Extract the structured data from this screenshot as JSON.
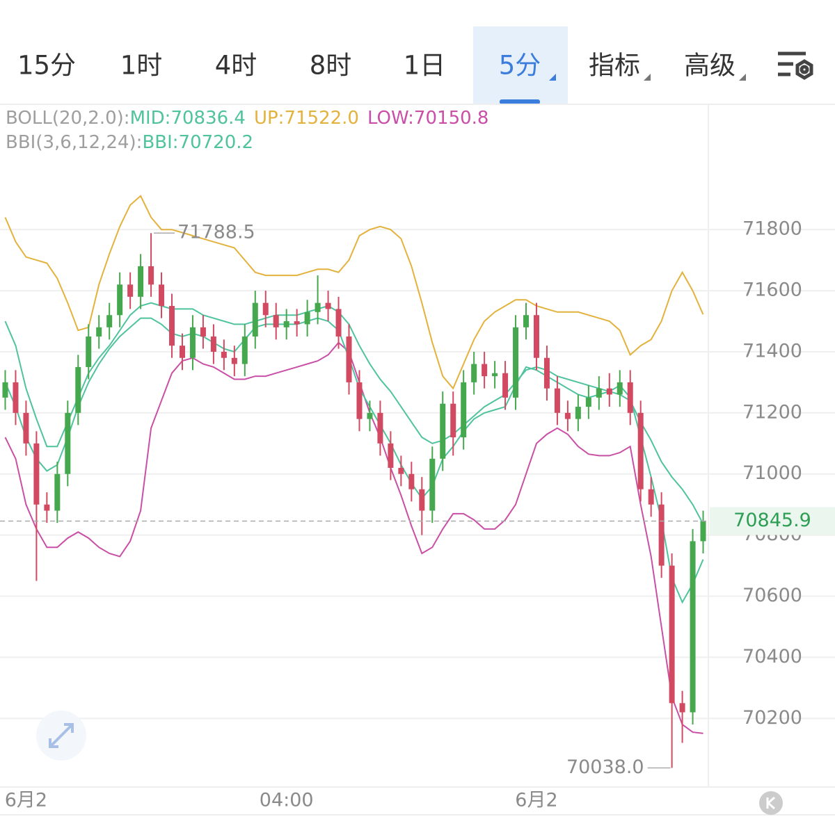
{
  "tabs": [
    "15分",
    "1时",
    "4时",
    "8时",
    "1日",
    "5分",
    "指标",
    "高级"
  ],
  "active_tab": 5,
  "chart_data": {
    "type": "candlestick",
    "legend": [
      {
        "indicator": "BOLL(20,2.0):",
        "color": "#9e9e9e",
        "items": [
          {
            "text": "MID:70836.4",
            "color": "#4fc39d"
          },
          {
            "text": "UP:71522.0",
            "color": "#e3b23c"
          },
          {
            "text": "LOW:70150.8",
            "color": "#c94fa6"
          }
        ]
      },
      {
        "indicator": "BBI(3,6,12,24):",
        "color": "#9e9e9e",
        "items": [
          {
            "text": "BBI:70720.2",
            "color": "#4fc39d"
          }
        ]
      }
    ],
    "up_color": "#45a84f",
    "down_color": "#d24a62",
    "open": [
      71250,
      71300,
      71200,
      71100,
      70900,
      70880,
      71000,
      71200,
      71350,
      71450,
      71480,
      71520,
      71620,
      71580,
      71680,
      71620,
      71550,
      71420,
      71380,
      71480,
      71450,
      71400,
      71380,
      71360,
      71450,
      71560,
      71520,
      71480,
      71500,
      71490,
      71530,
      71560,
      71540,
      71450,
      71300,
      71180,
      71200,
      71100,
      71020,
      71000,
      70950,
      70880,
      71050,
      71230,
      71120,
      71300,
      71360,
      71320,
      71330,
      71250,
      71480,
      71520,
      71380,
      71280,
      71200,
      71180,
      71220,
      71250,
      71280,
      71260,
      71300,
      71200,
      70950,
      70900,
      70700,
      70250,
      70220,
      70780
    ],
    "high": [
      71340,
      71340,
      71240,
      71140,
      70940,
      71040,
      71240,
      71390,
      71490,
      71520,
      71560,
      71660,
      71660,
      71720,
      71788.5,
      71660,
      71590,
      71460,
      71520,
      71520,
      71490,
      71440,
      71420,
      71490,
      71600,
      71600,
      71560,
      71540,
      71540,
      71570,
      71650,
      71600,
      71580,
      71490,
      71340,
      71240,
      71240,
      71140,
      71060,
      71040,
      70990,
      71090,
      71270,
      71270,
      71340,
      71400,
      71400,
      71370,
      71370,
      71520,
      71560,
      71560,
      71420,
      71320,
      71240,
      71260,
      71290,
      71320,
      71330,
      71340,
      71340,
      71240,
      70990,
      70940,
      70740,
      70290,
      70820,
      70880
    ],
    "low": [
      71210,
      71160,
      71060,
      70650,
      70840,
      70840,
      70960,
      71160,
      71310,
      71410,
      71440,
      71480,
      71540,
      71540,
      71580,
      71510,
      71380,
      71340,
      71340,
      71410,
      71360,
      71340,
      71320,
      71320,
      71410,
      71480,
      71440,
      71440,
      71450,
      71450,
      71490,
      71500,
      71410,
      71260,
      71140,
      71140,
      71060,
      70980,
      70960,
      70910,
      70800,
      70840,
      71010,
      71060,
      71080,
      71260,
      71280,
      71280,
      71210,
      71210,
      71440,
      71340,
      71240,
      71160,
      71140,
      71140,
      71180,
      71210,
      71220,
      71220,
      71160,
      70910,
      70860,
      70660,
      70038,
      70120,
      70180,
      70740
    ],
    "close": [
      71300,
      71200,
      71100,
      70900,
      70880,
      71000,
      71200,
      71350,
      71450,
      71480,
      71520,
      71620,
      71580,
      71680,
      71620,
      71550,
      71420,
      71380,
      71480,
      71450,
      71400,
      71380,
      71360,
      71450,
      71560,
      71520,
      71480,
      71500,
      71490,
      71530,
      71560,
      71540,
      71450,
      71300,
      71180,
      71200,
      71100,
      71020,
      71000,
      70950,
      70880,
      71050,
      71230,
      71120,
      71300,
      71360,
      71320,
      71330,
      71250,
      71480,
      71520,
      71380,
      71280,
      71200,
      71180,
      71220,
      71250,
      71280,
      71260,
      71300,
      71200,
      70950,
      70900,
      70700,
      70250,
      70220,
      70780,
      70845.9
    ],
    "series": [
      {
        "color": "#e3b23c",
        "values": [
          71840,
          71760,
          71710,
          71700,
          71690,
          71640,
          71560,
          71470,
          71480,
          71620,
          71720,
          71810,
          71880,
          71910,
          71840,
          71800,
          71800,
          71790,
          71780,
          71770,
          71760,
          71750,
          71740,
          71700,
          71660,
          71650,
          71650,
          71650,
          71650,
          71660,
          71670,
          71670,
          71660,
          71700,
          71780,
          71800,
          71810,
          71800,
          71770,
          71680,
          71560,
          71430,
          71320,
          71280,
          71360,
          71440,
          71500,
          71530,
          71550,
          71570,
          71570,
          71550,
          71540,
          71530,
          71530,
          71530,
          71520,
          71510,
          71500,
          71470,
          71390,
          71420,
          71440,
          71500,
          71600,
          71660,
          71600,
          71522
        ]
      },
      {
        "color": "#4fc39d",
        "values": [
          71500,
          71420,
          71280,
          71180,
          71090,
          71090,
          71170,
          71250,
          71330,
          71380,
          71420,
          71470,
          71520,
          71550,
          71560,
          71550,
          71540,
          71540,
          71540,
          71520,
          71510,
          71500,
          71490,
          71490,
          71500,
          71510,
          71520,
          71520,
          71520,
          71530,
          71540,
          71550,
          71530,
          71490,
          71420,
          71360,
          71310,
          71270,
          71220,
          71170,
          71120,
          71100,
          71110,
          71130,
          71160,
          71190,
          71220,
          71240,
          71260,
          71300,
          71340,
          71350,
          71340,
          71320,
          71310,
          71300,
          71290,
          71280,
          71270,
          71260,
          71240,
          71170,
          71110,
          71040,
          70990,
          70950,
          70900,
          70836.4
        ]
      },
      {
        "color": "#c94fa6",
        "values": [
          71120,
          71050,
          70900,
          70820,
          70760,
          70760,
          70790,
          70810,
          70790,
          70760,
          70740,
          70730,
          70780,
          70880,
          71150,
          71240,
          71330,
          71370,
          71380,
          71360,
          71350,
          71330,
          71310,
          71310,
          71320,
          71320,
          71330,
          71340,
          71350,
          71360,
          71370,
          71390,
          71430,
          71400,
          71300,
          71200,
          71120,
          71020,
          70930,
          70830,
          70740,
          70760,
          70820,
          70870,
          70870,
          70850,
          70820,
          70820,
          70850,
          70900,
          71000,
          71100,
          71130,
          71150,
          71130,
          71090,
          71065,
          71060,
          71060,
          71070,
          71090,
          70900,
          70730,
          70500,
          70270,
          70180,
          70155,
          70150.8
        ]
      },
      {
        "color": "#4fc39d",
        "values": [
          71300,
          71220,
          71120,
          71050,
          71010,
          71030,
          71120,
          71220,
          71300,
          71360,
          71410,
          71450,
          71480,
          71510,
          71510,
          71490,
          71460,
          71450,
          71460,
          71450,
          71430,
          71410,
          71400,
          71440,
          71480,
          71490,
          71490,
          71490,
          71490,
          71500,
          71510,
          71500,
          71470,
          71380,
          71280,
          71220,
          71160,
          71100,
          71030,
          70970,
          70920,
          70960,
          71050,
          71090,
          71140,
          71180,
          71200,
          71210,
          71220,
          71290,
          71350,
          71340,
          71320,
          71300,
          71280,
          71260,
          71250,
          71260,
          71270,
          71290,
          71250,
          71120,
          70990,
          70850,
          70660,
          70580,
          70640,
          70720.2
        ]
      }
    ],
    "x_ticks": [
      {
        "value": 2,
        "label": "6月2"
      },
      {
        "value": 27,
        "label": "04:00"
      },
      {
        "value": 51,
        "label": "6月2"
      }
    ],
    "ylim": [
      69980,
      72210
    ],
    "yticks": [
      70200,
      70400,
      70600,
      70800,
      71000,
      71200,
      71400,
      71600,
      71800
    ],
    "grid": true,
    "max_label": {
      "index": 14,
      "value": 71788.5
    },
    "min_label": {
      "index": 64,
      "value": 70038,
      "label": "70038.0"
    },
    "last_price": {
      "value": 70845.9,
      "color": "#2f9e55",
      "background": "#eaf6ee"
    }
  }
}
